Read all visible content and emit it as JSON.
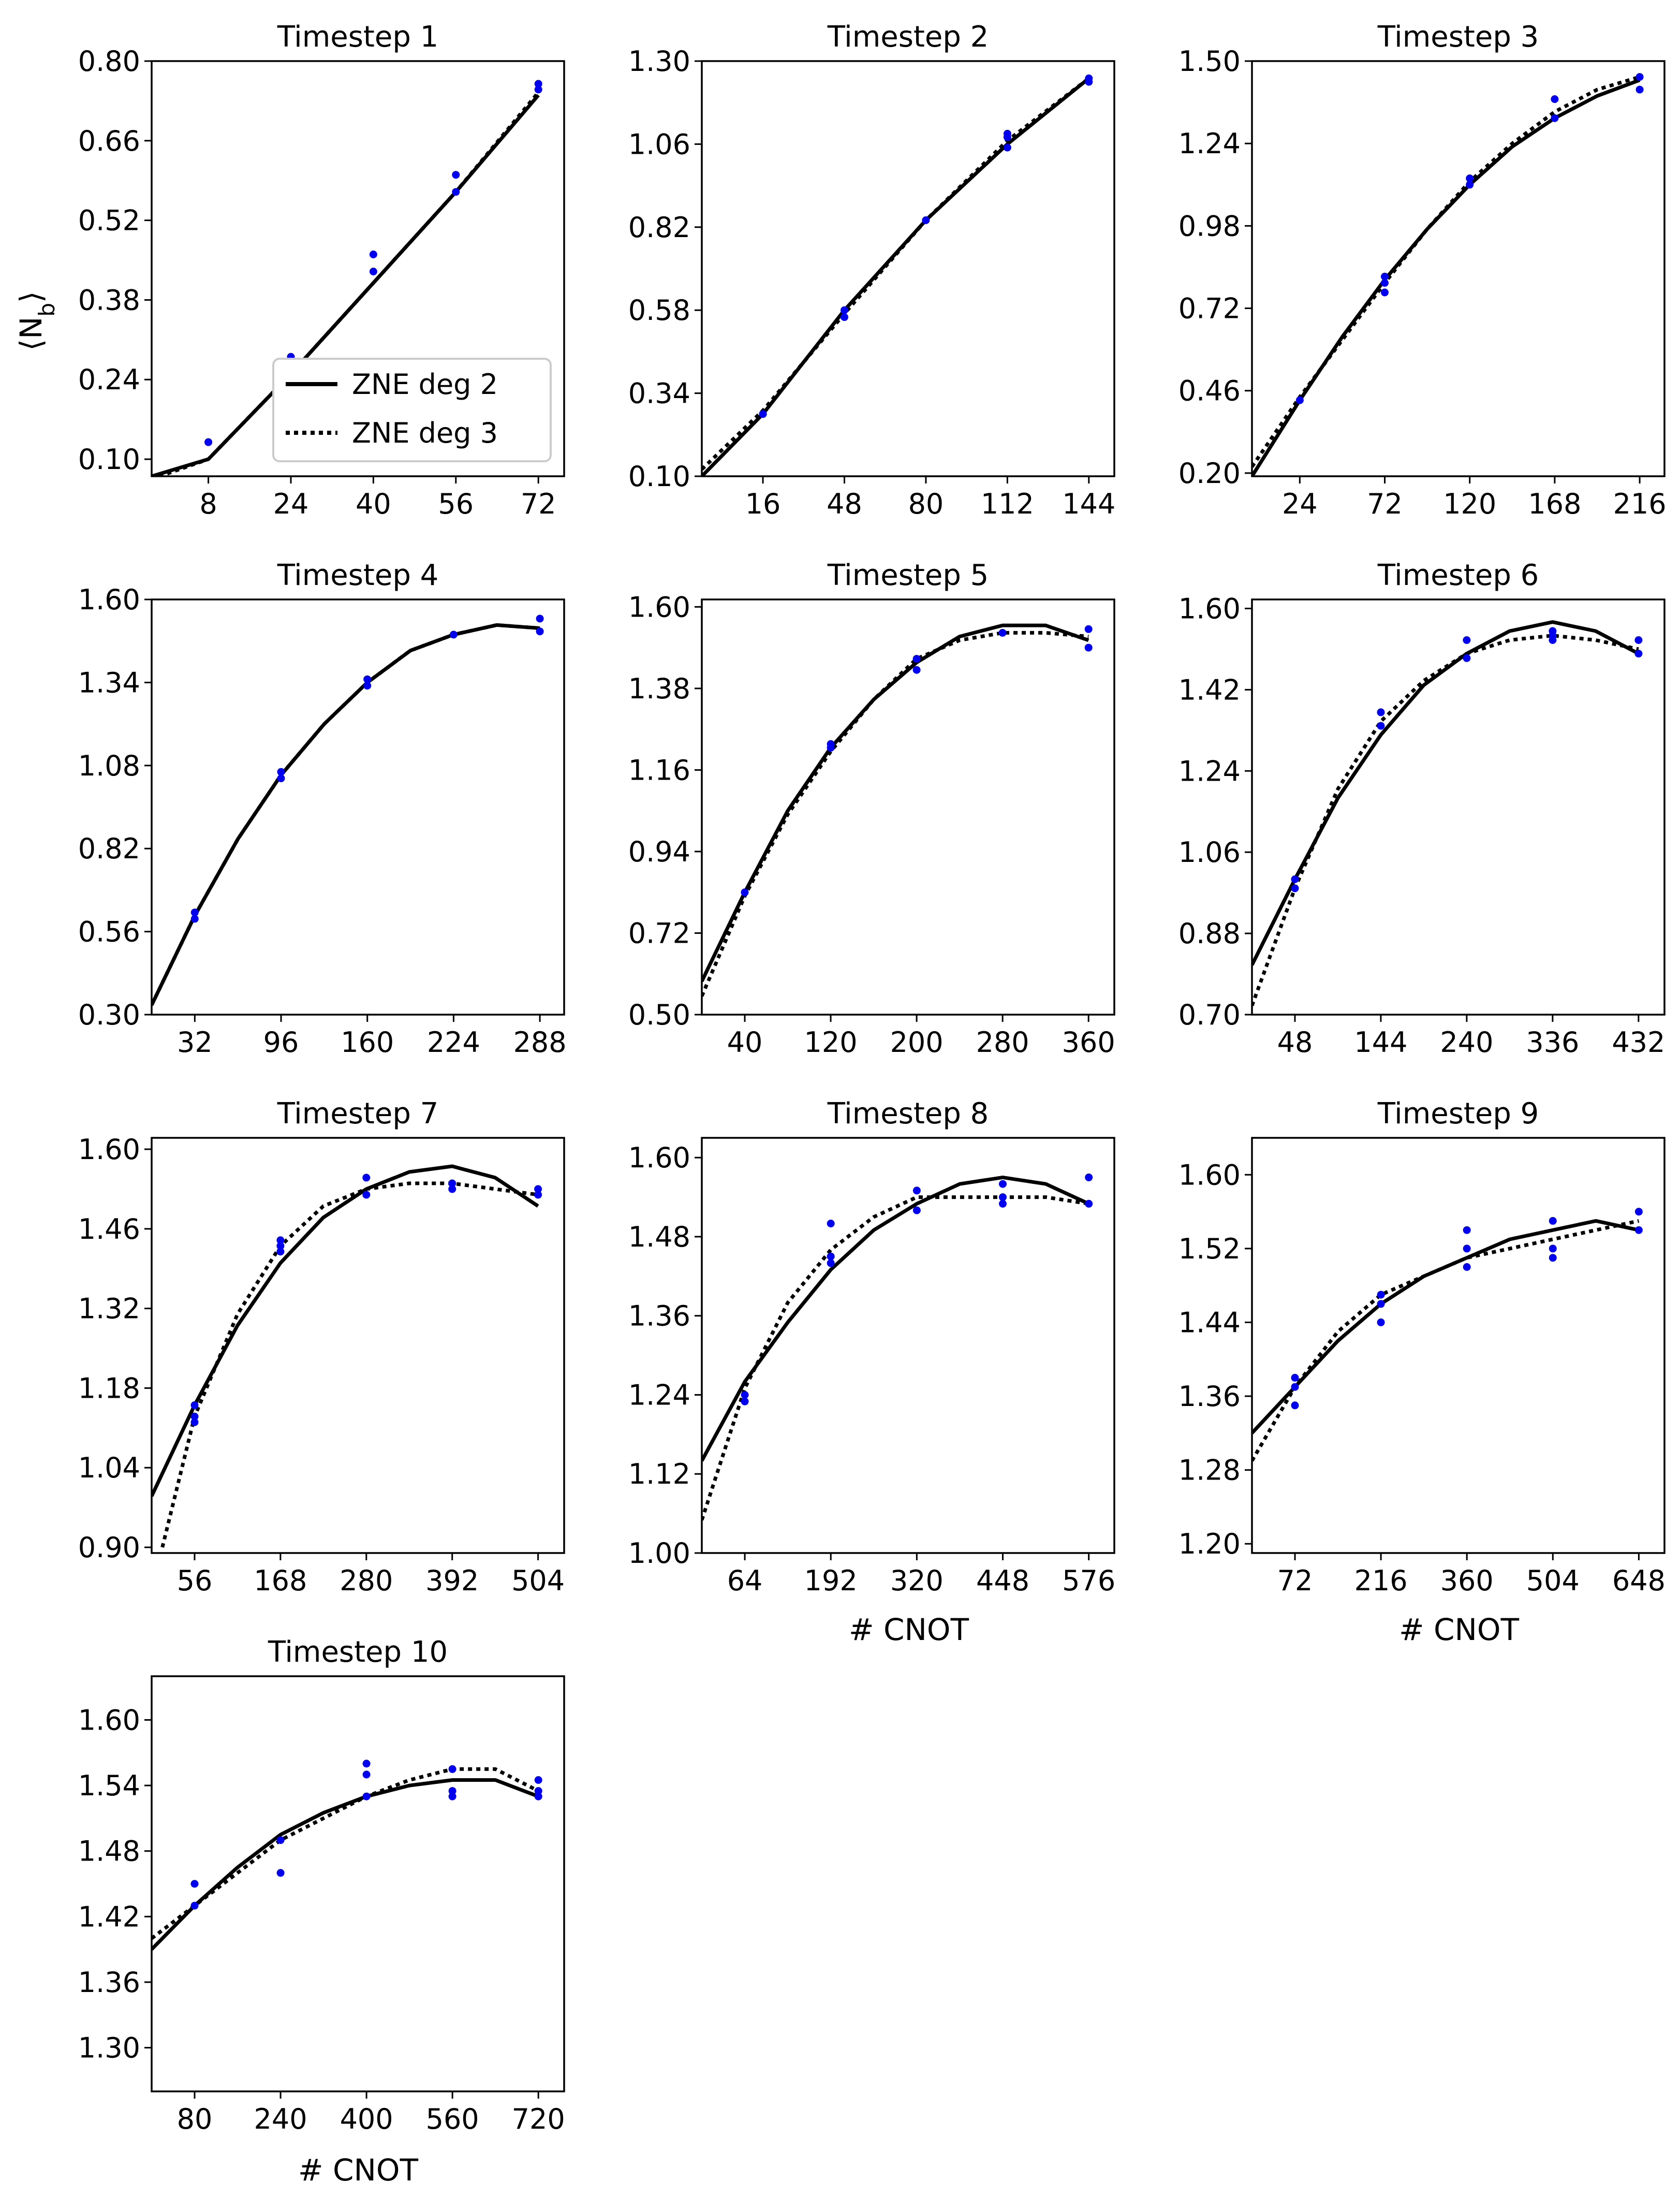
{
  "figure": {
    "y_axis_label": "⟨N",
    "y_axis_label_sub": "b",
    "y_axis_label_close": "⟩",
    "x_axis_label": "# CNOT",
    "legend": {
      "entries": [
        "ZNE deg 2",
        "ZNE deg 3"
      ],
      "location": "lower right of Timestep 1"
    },
    "colors": {
      "deg2": "#000000",
      "deg3": "#000000",
      "points": "#0000ee",
      "frame": "#000000"
    }
  },
  "chart_data": [
    {
      "type": "line",
      "title": "Timestep 1",
      "xlim": [
        -3,
        77
      ],
      "ylim": [
        0.07,
        0.8
      ],
      "xticks": [
        8,
        24,
        40,
        56,
        72
      ],
      "yticks": [
        "0.10",
        "0.24",
        "0.38",
        "0.52",
        "0.66",
        "0.80"
      ],
      "series": [
        {
          "name": "ZNE deg 2",
          "style": "solid",
          "x": [
            -3,
            8,
            24,
            40,
            56,
            72
          ],
          "y": [
            0.07,
            0.1,
            0.25,
            0.41,
            0.57,
            0.74
          ]
        },
        {
          "name": "ZNE deg 3",
          "style": "dotted",
          "x": [
            -3,
            8,
            24,
            40,
            56,
            72
          ],
          "y": [
            0.065,
            0.1,
            0.25,
            0.41,
            0.57,
            0.745
          ]
        }
      ],
      "points": {
        "x": [
          8,
          8,
          24,
          24,
          40,
          40,
          56,
          56,
          72,
          72
        ],
        "y": [
          0.13,
          0.13,
          0.27,
          0.28,
          0.43,
          0.46,
          0.57,
          0.6,
          0.75,
          0.76
        ]
      }
    },
    {
      "type": "line",
      "title": "Timestep 2",
      "xlim": [
        -8,
        154
      ],
      "ylim": [
        0.1,
        1.3
      ],
      "xticks": [
        16,
        48,
        80,
        112,
        144
      ],
      "yticks": [
        "0.10",
        "0.34",
        "0.58",
        "0.82",
        "1.06",
        "1.30"
      ],
      "series": [
        {
          "name": "ZNE deg 2",
          "style": "solid",
          "x": [
            -8,
            16,
            48,
            80,
            112,
            144
          ],
          "y": [
            0.1,
            0.28,
            0.58,
            0.84,
            1.06,
            1.25
          ]
        },
        {
          "name": "ZNE deg 3",
          "style": "dotted",
          "x": [
            -8,
            16,
            48,
            80,
            112,
            144
          ],
          "y": [
            0.12,
            0.29,
            0.57,
            0.84,
            1.07,
            1.25
          ]
        }
      ],
      "points": {
        "x": [
          16,
          16,
          48,
          48,
          80,
          112,
          112,
          112,
          144,
          144
        ],
        "y": [
          0.28,
          0.28,
          0.56,
          0.58,
          0.84,
          1.05,
          1.08,
          1.09,
          1.24,
          1.25
        ]
      }
    },
    {
      "type": "line",
      "title": "Timestep 3",
      "xlim": [
        -3,
        230
      ],
      "ylim": [
        0.19,
        1.5
      ],
      "xticks": [
        24,
        72,
        120,
        168,
        216
      ],
      "yticks": [
        "0.20",
        "0.46",
        "0.72",
        "0.98",
        "1.24",
        "1.50"
      ],
      "series": [
        {
          "name": "ZNE deg 2",
          "style": "solid",
          "x": [
            -3,
            24,
            48,
            72,
            96,
            120,
            144,
            168,
            192,
            216
          ],
          "y": [
            0.19,
            0.43,
            0.63,
            0.81,
            0.97,
            1.11,
            1.23,
            1.32,
            1.39,
            1.44
          ]
        },
        {
          "name": "ZNE deg 3",
          "style": "dotted",
          "x": [
            -3,
            24,
            48,
            72,
            96,
            120,
            144,
            168,
            192,
            216
          ],
          "y": [
            0.22,
            0.44,
            0.62,
            0.8,
            0.97,
            1.12,
            1.24,
            1.34,
            1.41,
            1.45
          ]
        }
      ],
      "points": {
        "x": [
          24,
          72,
          72,
          72,
          120,
          120,
          168,
          168,
          216,
          216
        ],
        "y": [
          0.43,
          0.77,
          0.8,
          0.82,
          1.11,
          1.13,
          1.32,
          1.38,
          1.41,
          1.45
        ]
      }
    },
    {
      "type": "line",
      "title": "Timestep 4",
      "xlim": [
        0,
        306
      ],
      "ylim": [
        0.3,
        1.6
      ],
      "xticks": [
        32,
        96,
        160,
        224,
        288
      ],
      "yticks": [
        "0.30",
        "0.56",
        "0.82",
        "1.08",
        "1.34",
        "1.60"
      ],
      "series": [
        {
          "name": "ZNE deg 2",
          "style": "solid",
          "x": [
            0,
            32,
            64,
            96,
            128,
            160,
            192,
            224,
            256,
            288
          ],
          "y": [
            0.33,
            0.61,
            0.85,
            1.05,
            1.21,
            1.34,
            1.44,
            1.49,
            1.52,
            1.51
          ]
        },
        {
          "name": "ZNE deg 3",
          "style": "dotted",
          "x": [
            0,
            32,
            64,
            96,
            128,
            160,
            192,
            224,
            256,
            288
          ],
          "y": [
            0.33,
            0.61,
            0.85,
            1.05,
            1.21,
            1.34,
            1.44,
            1.49,
            1.52,
            1.51
          ]
        }
      ],
      "points": {
        "x": [
          32,
          32,
          96,
          96,
          160,
          160,
          224,
          288,
          288
        ],
        "y": [
          0.6,
          0.62,
          1.04,
          1.06,
          1.33,
          1.35,
          1.49,
          1.5,
          1.54
        ]
      }
    },
    {
      "type": "line",
      "title": "Timestep 5",
      "xlim": [
        0,
        384
      ],
      "ylim": [
        0.5,
        1.62
      ],
      "xticks": [
        40,
        120,
        200,
        280,
        360
      ],
      "yticks": [
        "0.50",
        "0.72",
        "0.94",
        "1.16",
        "1.38",
        "1.60"
      ],
      "series": [
        {
          "name": "ZNE deg 2",
          "style": "solid",
          "x": [
            0,
            40,
            80,
            120,
            160,
            200,
            240,
            280,
            320,
            360
          ],
          "y": [
            0.59,
            0.83,
            1.05,
            1.22,
            1.35,
            1.45,
            1.52,
            1.55,
            1.55,
            1.51
          ]
        },
        {
          "name": "ZNE deg 3",
          "style": "dotted",
          "x": [
            0,
            40,
            80,
            120,
            160,
            200,
            240,
            280,
            320,
            360
          ],
          "y": [
            0.55,
            0.82,
            1.04,
            1.21,
            1.35,
            1.46,
            1.51,
            1.53,
            1.53,
            1.52
          ]
        }
      ],
      "points": {
        "x": [
          40,
          120,
          120,
          200,
          200,
          280,
          360,
          360
        ],
        "y": [
          0.83,
          1.22,
          1.23,
          1.43,
          1.46,
          1.53,
          1.49,
          1.54
        ]
      }
    },
    {
      "type": "line",
      "title": "Timestep 6",
      "xlim": [
        0,
        461
      ],
      "ylim": [
        0.7,
        1.62
      ],
      "xticks": [
        48,
        144,
        240,
        336,
        432
      ],
      "yticks": [
        "0.70",
        "0.88",
        "1.06",
        "1.24",
        "1.42",
        "1.60"
      ],
      "series": [
        {
          "name": "ZNE deg 2",
          "style": "solid",
          "x": [
            0,
            48,
            96,
            144,
            192,
            240,
            288,
            336,
            384,
            432
          ],
          "y": [
            0.81,
            1.0,
            1.18,
            1.32,
            1.43,
            1.5,
            1.55,
            1.57,
            1.55,
            1.5
          ]
        },
        {
          "name": "ZNE deg 3",
          "style": "dotted",
          "x": [
            0,
            48,
            96,
            144,
            192,
            240,
            288,
            336,
            384,
            432
          ],
          "y": [
            0.72,
            0.98,
            1.2,
            1.35,
            1.44,
            1.5,
            1.53,
            1.54,
            1.53,
            1.51
          ]
        }
      ],
      "points": {
        "x": [
          48,
          48,
          144,
          144,
          240,
          240,
          336,
          336,
          336,
          432,
          432
        ],
        "y": [
          0.98,
          1.0,
          1.34,
          1.37,
          1.49,
          1.53,
          1.53,
          1.54,
          1.55,
          1.5,
          1.53
        ]
      }
    },
    {
      "type": "line",
      "title": "Timestep 7",
      "xlim": [
        0,
        538
      ],
      "ylim": [
        0.89,
        1.62
      ],
      "xticks": [
        56,
        168,
        280,
        392,
        504
      ],
      "yticks": [
        "0.90",
        "1.04",
        "1.18",
        "1.32",
        "1.46",
        "1.60"
      ],
      "series": [
        {
          "name": "ZNE deg 2",
          "style": "solid",
          "x": [
            0,
            56,
            112,
            168,
            224,
            280,
            336,
            392,
            448,
            504
          ],
          "y": [
            0.99,
            1.15,
            1.29,
            1.4,
            1.48,
            1.53,
            1.56,
            1.57,
            1.55,
            1.5
          ]
        },
        {
          "name": "ZNE deg 3",
          "style": "dotted",
          "x": [
            14,
            56,
            112,
            168,
            224,
            280,
            336,
            392,
            448,
            504
          ],
          "y": [
            0.9,
            1.13,
            1.31,
            1.43,
            1.5,
            1.53,
            1.54,
            1.54,
            1.53,
            1.52
          ]
        }
      ],
      "points": {
        "x": [
          56,
          56,
          56,
          168,
          168,
          168,
          280,
          280,
          392,
          392,
          504,
          504
        ],
        "y": [
          1.12,
          1.13,
          1.15,
          1.42,
          1.43,
          1.44,
          1.52,
          1.55,
          1.53,
          1.54,
          1.52,
          1.53
        ]
      }
    },
    {
      "type": "line",
      "title": "Timestep 8",
      "xlim": [
        0,
        614
      ],
      "ylim": [
        1.0,
        1.63
      ],
      "xticks": [
        64,
        192,
        320,
        448,
        576
      ],
      "yticks": [
        "1.00",
        "1.12",
        "1.24",
        "1.36",
        "1.48",
        "1.60"
      ],
      "series": [
        {
          "name": "ZNE deg 2",
          "style": "solid",
          "x": [
            0,
            64,
            128,
            192,
            256,
            320,
            384,
            448,
            512,
            576
          ],
          "y": [
            1.14,
            1.26,
            1.35,
            1.43,
            1.49,
            1.53,
            1.56,
            1.57,
            1.56,
            1.53
          ]
        },
        {
          "name": "ZNE deg 3",
          "style": "dotted",
          "x": [
            0,
            64,
            128,
            192,
            256,
            320,
            384,
            448,
            512,
            576
          ],
          "y": [
            1.05,
            1.25,
            1.38,
            1.46,
            1.51,
            1.54,
            1.54,
            1.54,
            1.54,
            1.53
          ]
        }
      ],
      "points": {
        "x": [
          64,
          64,
          192,
          192,
          192,
          320,
          320,
          448,
          448,
          448,
          576,
          576
        ],
        "y": [
          1.23,
          1.24,
          1.44,
          1.45,
          1.5,
          1.52,
          1.55,
          1.53,
          1.54,
          1.56,
          1.53,
          1.57
        ]
      }
    },
    {
      "type": "line",
      "title": "Timestep 9",
      "xlim": [
        0,
        691
      ],
      "ylim": [
        1.19,
        1.64
      ],
      "xticks": [
        72,
        216,
        360,
        504,
        648
      ],
      "yticks": [
        "1.20",
        "1.28",
        "1.36",
        "1.44",
        "1.52",
        "1.60"
      ],
      "series": [
        {
          "name": "ZNE deg 2",
          "style": "solid",
          "x": [
            0,
            72,
            144,
            216,
            288,
            360,
            432,
            504,
            576,
            648
          ],
          "y": [
            1.32,
            1.37,
            1.42,
            1.46,
            1.49,
            1.51,
            1.53,
            1.54,
            1.55,
            1.54
          ]
        },
        {
          "name": "ZNE deg 3",
          "style": "dotted",
          "x": [
            0,
            72,
            144,
            216,
            288,
            360,
            432,
            504,
            576,
            648
          ],
          "y": [
            1.29,
            1.37,
            1.43,
            1.47,
            1.49,
            1.51,
            1.52,
            1.53,
            1.54,
            1.55
          ]
        }
      ],
      "points": {
        "x": [
          72,
          72,
          72,
          216,
          216,
          216,
          360,
          360,
          360,
          504,
          504,
          504,
          648,
          648
        ],
        "y": [
          1.35,
          1.37,
          1.38,
          1.44,
          1.46,
          1.47,
          1.5,
          1.52,
          1.54,
          1.51,
          1.52,
          1.55,
          1.54,
          1.56
        ]
      }
    },
    {
      "type": "line",
      "title": "Timestep 10",
      "xlim": [
        0,
        768
      ],
      "ylim": [
        1.26,
        1.64
      ],
      "xticks": [
        80,
        240,
        400,
        560,
        720
      ],
      "yticks": [
        "1.30",
        "1.36",
        "1.42",
        "1.48",
        "1.54",
        "1.60"
      ],
      "series": [
        {
          "name": "ZNE deg 2",
          "style": "solid",
          "x": [
            0,
            80,
            160,
            240,
            320,
            400,
            480,
            560,
            640,
            720
          ],
          "y": [
            1.39,
            1.43,
            1.465,
            1.495,
            1.515,
            1.53,
            1.54,
            1.545,
            1.545,
            1.53
          ]
        },
        {
          "name": "ZNE deg 3",
          "style": "dotted",
          "x": [
            0,
            80,
            160,
            240,
            320,
            400,
            480,
            560,
            640,
            720
          ],
          "y": [
            1.4,
            1.43,
            1.46,
            1.49,
            1.51,
            1.53,
            1.545,
            1.555,
            1.555,
            1.535
          ]
        }
      ],
      "points": {
        "x": [
          80,
          80,
          240,
          240,
          400,
          400,
          400,
          560,
          560,
          560,
          720,
          720,
          720
        ],
        "y": [
          1.43,
          1.45,
          1.46,
          1.49,
          1.53,
          1.55,
          1.56,
          1.53,
          1.535,
          1.555,
          1.53,
          1.535,
          1.545
        ]
      }
    }
  ]
}
